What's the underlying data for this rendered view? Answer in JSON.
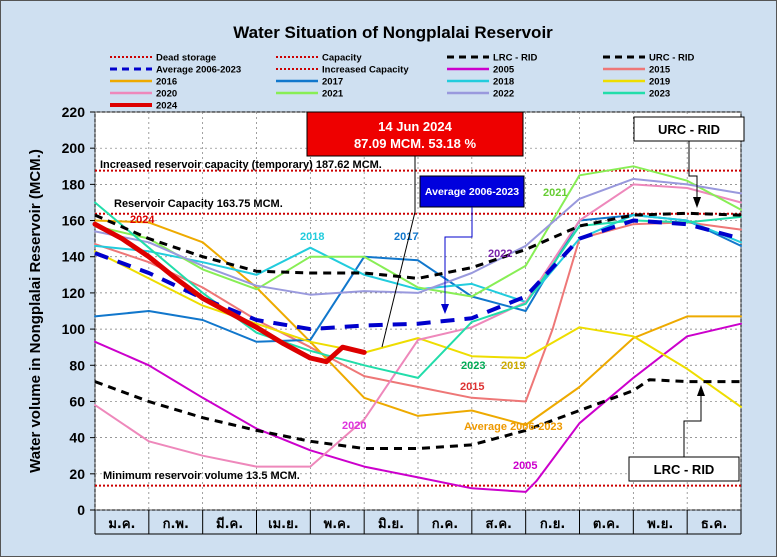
{
  "chart_data": {
    "type": "line",
    "title": "Water Situation of Nongplalai Reservoir",
    "ylabel": "Water volume in Nongplalai Reservoir (MCM.)",
    "ylim": [
      0,
      220
    ],
    "yticks": [
      0,
      20,
      40,
      60,
      80,
      100,
      120,
      140,
      160,
      180,
      200,
      220
    ],
    "categories": [
      "ม.ค.",
      "ก.พ.",
      "มี.ค.",
      "เม.ย.",
      "พ.ค.",
      "มิ.ย.",
      "ก.ค.",
      "ส.ค.",
      "ก.ย.",
      "ต.ค.",
      "พ.ย.",
      "ธ.ค."
    ],
    "x_unit": "month index (0 = start of Jan, 12 = end of Dec)",
    "reference_lines": [
      {
        "name": "Dead storage",
        "value": 13.5,
        "color": "#cc0000",
        "label": "Minimum reservoir volume 13.5 MCM."
      },
      {
        "name": "Capacity",
        "value": 163.75,
        "color": "#cc0000",
        "label": "Reservoir Capacity 163.75 MCM."
      },
      {
        "name": "Increased Capacity",
        "value": 187.62,
        "color": "#cc0000",
        "label": "Increased reservoir capacity (temporary) 187.62 MCM."
      }
    ],
    "series": [
      {
        "name": "LRC - RID",
        "color": "#000000",
        "style": "dashed",
        "x": [
          0,
          1,
          2,
          3,
          4,
          5,
          6,
          7,
          8,
          9,
          10,
          10.3,
          11,
          12
        ],
        "values": [
          71,
          60,
          51,
          44,
          38,
          34,
          34,
          36,
          44,
          55,
          66,
          72,
          71,
          71
        ]
      },
      {
        "name": "URC - RID",
        "color": "#000000",
        "style": "dashed",
        "x": [
          0,
          1,
          2,
          3,
          4,
          5,
          6,
          7,
          8,
          9,
          10,
          11,
          12
        ],
        "values": [
          163,
          150,
          140,
          132,
          131,
          131,
          128,
          134,
          144,
          157,
          163,
          164,
          163
        ]
      },
      {
        "name": "Average 2006-2023",
        "color": "#0000cc",
        "style": "dashed",
        "x": [
          0,
          1,
          2,
          3,
          4,
          5,
          6,
          7,
          8,
          9,
          10,
          11,
          12
        ],
        "values": [
          142,
          131,
          117,
          105,
          100,
          102,
          103,
          106,
          118,
          150,
          160,
          158,
          150
        ]
      },
      {
        "name": "2005",
        "color": "#cc00cc",
        "x": [
          0,
          1,
          2,
          3,
          4,
          5,
          6,
          7,
          8,
          8.2,
          9,
          10,
          11,
          12
        ],
        "values": [
          93,
          80,
          62,
          45,
          33,
          24,
          18,
          12,
          10,
          16,
          48,
          73,
          96,
          103
        ]
      },
      {
        "name": "2015",
        "color": "#ee7777",
        "x": [
          0,
          1,
          2,
          3,
          4,
          5,
          6,
          7,
          8,
          8.5,
          9,
          10,
          11,
          12
        ],
        "values": [
          147,
          137,
          123,
          105,
          90,
          74,
          68,
          62,
          60,
          100,
          150,
          158,
          159,
          155
        ]
      },
      {
        "name": "2016",
        "color": "#eeaa00",
        "x": [
          0,
          1,
          2,
          3,
          4,
          5,
          6,
          7,
          8,
          9,
          10,
          11,
          12
        ],
        "values": [
          160,
          159,
          148,
          123,
          93,
          62,
          52,
          55,
          47,
          68,
          95,
          107,
          107
        ]
      },
      {
        "name": "2017",
        "color": "#1177cc",
        "x": [
          0,
          1,
          2,
          3,
          4,
          5,
          6,
          7,
          8,
          9,
          10,
          11,
          12
        ],
        "values": [
          107,
          110,
          105,
          93,
          94,
          140,
          138,
          118,
          110,
          160,
          163,
          160,
          146
        ]
      },
      {
        "name": "2018",
        "color": "#22ccdd",
        "x": [
          0,
          1,
          2,
          3,
          4,
          5,
          6,
          7,
          8,
          9,
          10,
          11,
          12
        ],
        "values": [
          146,
          143,
          137,
          130,
          145,
          130,
          122,
          125,
          115,
          150,
          163,
          160,
          148
        ]
      },
      {
        "name": "2019",
        "color": "#eedd00",
        "x": [
          0,
          1,
          2,
          3,
          4,
          5,
          6,
          7,
          8,
          9,
          10,
          11,
          12
        ],
        "values": [
          143,
          128,
          113,
          103,
          93,
          87,
          95,
          85,
          84,
          101,
          96,
          78,
          57
        ]
      },
      {
        "name": "2020",
        "color": "#ee88bb",
        "x": [
          0,
          1,
          2,
          3,
          4,
          5,
          6,
          7,
          8,
          9,
          10,
          11,
          12
        ],
        "values": [
          58,
          38,
          30,
          24,
          24,
          50,
          94,
          101,
          115,
          160,
          180,
          178,
          170
        ]
      },
      {
        "name": "2021",
        "color": "#88ee55",
        "x": [
          0,
          1,
          2,
          3,
          4,
          5,
          6,
          7,
          8,
          9,
          10,
          11,
          12
        ],
        "values": [
          157,
          150,
          133,
          122,
          140,
          140,
          123,
          118,
          135,
          185,
          190,
          182,
          166
        ]
      },
      {
        "name": "2022",
        "color": "#9999dd",
        "x": [
          0,
          1,
          2,
          3,
          4,
          5,
          6,
          7,
          8,
          9,
          10,
          11,
          12
        ],
        "values": [
          154,
          148,
          135,
          124,
          119,
          121,
          120,
          131,
          146,
          172,
          183,
          180,
          175
        ]
      },
      {
        "name": "2023",
        "color": "#22ddaa",
        "x": [
          0,
          1,
          2,
          3,
          4,
          5,
          6,
          7,
          8,
          9,
          10,
          11,
          12
        ],
        "values": [
          170,
          145,
          120,
          98,
          88,
          80,
          73,
          104,
          114,
          157,
          160,
          159,
          162
        ]
      },
      {
        "name": "2024",
        "color": "#dd0000",
        "style": "thick",
        "x": [
          0,
          0.5,
          1,
          1.5,
          2,
          2.5,
          3,
          3.5,
          4,
          4.3,
          4.6,
          5
        ],
        "values": [
          158,
          150,
          140,
          128,
          117,
          109,
          101,
          92,
          84,
          82,
          90,
          87.09
        ]
      }
    ],
    "annotations": {
      "current_date": "14 Jun 2024",
      "current_value": "87.09 MCM. 53.18 %",
      "average_label": "Average 2006-2023",
      "urc_label": "URC - RID",
      "lrc_label": "LRC - RID"
    }
  }
}
